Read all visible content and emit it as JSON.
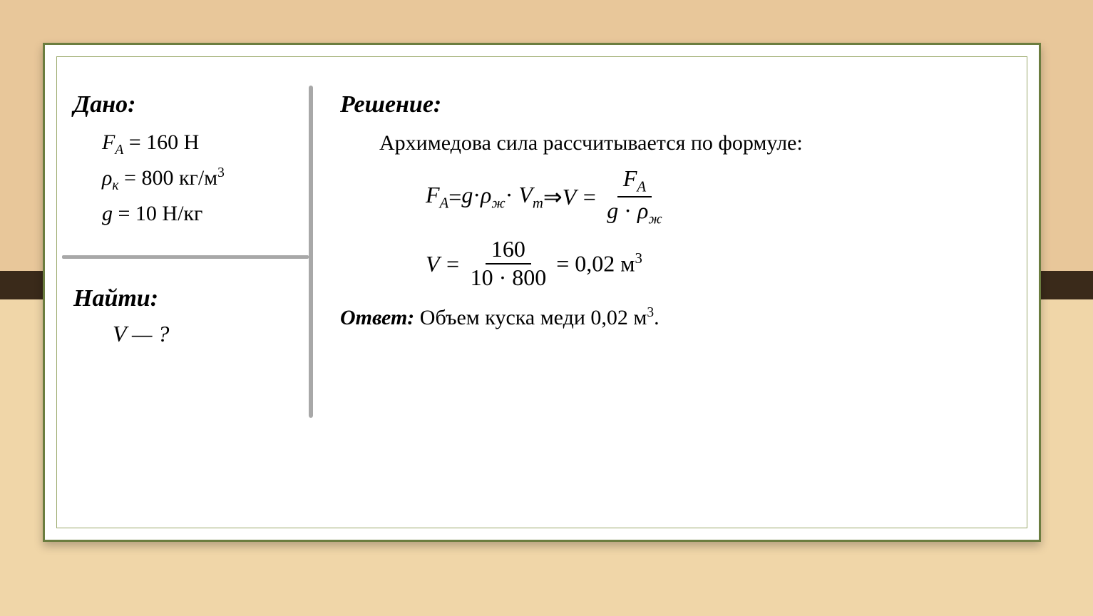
{
  "given": {
    "header": "Дано:",
    "lines": {
      "fa": {
        "var": "F",
        "sub": "A",
        "value": "= 160 Н"
      },
      "rho": {
        "var": "ρ",
        "sub": "к",
        "value": "= 800 кг/м",
        "sup": "3"
      },
      "g": {
        "var": "g",
        "value": "= 10 Н/кг"
      }
    }
  },
  "find": {
    "header": "Найти:",
    "line": "V — ?"
  },
  "solution": {
    "header": "Решение:",
    "intro": "Архимедова сила рассчитывается по формуле:",
    "formula1": {
      "lhs_var": "F",
      "lhs_sub": "A",
      "eq": " = ",
      "g": "g",
      "dot": "·",
      "rho": "ρ",
      "rho_sub": "ж",
      "V": "V",
      "V_sub": "т",
      "arrow": " ⇒ ",
      "V_res": "V = ",
      "frac_num_var": "F",
      "frac_num_sub": "A",
      "frac_den_g": "g",
      "frac_den_dot": " · ",
      "frac_den_rho": "ρ",
      "frac_den_rho_sub": "ж"
    },
    "formula2": {
      "lhs": "V = ",
      "num": "160",
      "den": "10 · 800",
      "rhs": " = 0,02 м",
      "rhs_sup": "3"
    },
    "answer_label": "Ответ:",
    "answer_text": " Объем куска меди 0,02 м",
    "answer_sup": "3",
    "answer_period": "."
  },
  "style": {
    "frame_border_color": "#6b7d3f",
    "separator_color": "#a8a8a8",
    "background_top": "#e8c79a",
    "background_band": "#3a2a1a",
    "background_bottom": "#f0d6a8",
    "text_color": "#000000",
    "fontsize_header": 34,
    "fontsize_body": 30,
    "fontsize_formula": 32
  }
}
